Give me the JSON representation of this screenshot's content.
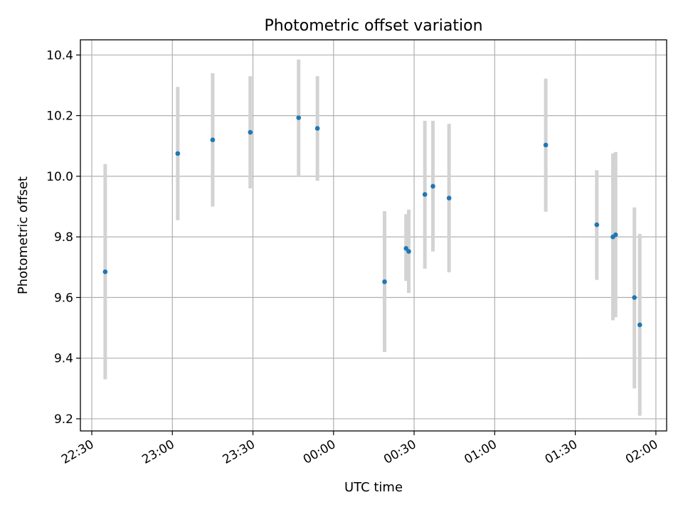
{
  "chart_data": {
    "type": "scatter",
    "title": "Photometric offset variation",
    "xlabel": "UTC time",
    "ylabel": "Photometric offset",
    "grid": true,
    "x_ticks": [
      "22:30",
      "23:00",
      "23:30",
      "00:00",
      "00:30",
      "01:00",
      "01:30",
      "02:00"
    ],
    "y_ticks": [
      "9.2",
      "9.4",
      "9.6",
      "9.8",
      "10.0",
      "10.2",
      "10.4"
    ],
    "xlim": [
      "22:30",
      "02:04"
    ],
    "ylim": [
      9.16,
      10.45
    ],
    "colors": {
      "marker": "#1f77b4",
      "errorbar": "#d3d3d3",
      "grid": "#b0b0b0"
    },
    "points": [
      {
        "x": "22:35",
        "y": 9.685,
        "err_low": 9.33,
        "err_high": 10.04
      },
      {
        "x": "23:02",
        "y": 10.075,
        "err_low": 9.855,
        "err_high": 10.295
      },
      {
        "x": "23:15",
        "y": 10.12,
        "err_low": 9.9,
        "err_high": 10.34
      },
      {
        "x": "23:29",
        "y": 10.145,
        "err_low": 9.96,
        "err_high": 10.33
      },
      {
        "x": "23:47",
        "y": 10.193,
        "err_low": 10.0,
        "err_high": 10.385
      },
      {
        "x": "23:54",
        "y": 10.158,
        "err_low": 9.985,
        "err_high": 10.33
      },
      {
        "x": "00:19",
        "y": 9.652,
        "err_low": 9.42,
        "err_high": 9.885
      },
      {
        "x": "00:27",
        "y": 9.762,
        "err_low": 9.655,
        "err_high": 9.875
      },
      {
        "x": "00:28",
        "y": 9.752,
        "err_low": 9.615,
        "err_high": 9.89
      },
      {
        "x": "00:34",
        "y": 9.94,
        "err_low": 9.695,
        "err_high": 10.183
      },
      {
        "x": "00:37",
        "y": 9.967,
        "err_low": 9.752,
        "err_high": 10.183
      },
      {
        "x": "00:43",
        "y": 9.928,
        "err_low": 9.683,
        "err_high": 10.173
      },
      {
        "x": "01:19",
        "y": 10.103,
        "err_low": 9.883,
        "err_high": 10.322
      },
      {
        "x": "01:38",
        "y": 9.84,
        "err_low": 9.658,
        "err_high": 10.02
      },
      {
        "x": "01:44",
        "y": 9.8,
        "err_low": 9.525,
        "err_high": 10.075
      },
      {
        "x": "01:45",
        "y": 9.807,
        "err_low": 9.535,
        "err_high": 10.08
      },
      {
        "x": "01:52",
        "y": 9.6,
        "err_low": 9.3,
        "err_high": 9.897
      },
      {
        "x": "01:54",
        "y": 9.51,
        "err_low": 9.21,
        "err_high": 9.81
      }
    ]
  }
}
